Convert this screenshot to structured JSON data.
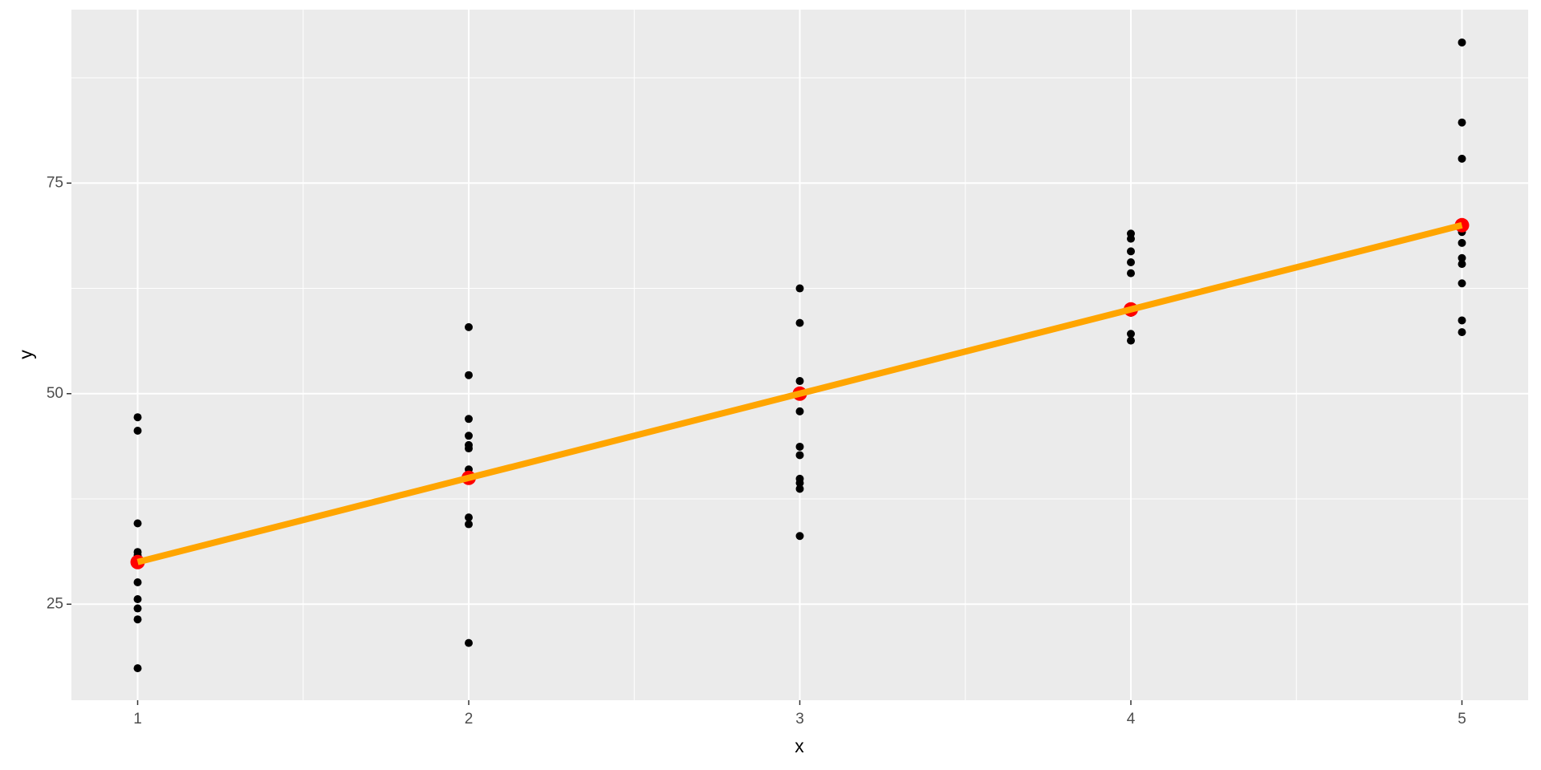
{
  "chart_data": {
    "type": "scatter",
    "xlabel": "x",
    "ylabel": "y",
    "xlim": [
      0.8,
      5.2
    ],
    "ylim": [
      13.6,
      95.6
    ],
    "xticks": [
      1,
      2,
      3,
      4,
      5
    ],
    "yticks": [
      25,
      50,
      75
    ],
    "x_minor_ticks": [
      1.5,
      2.5,
      3.5,
      4.5
    ],
    "y_minor_ticks": [
      37.5,
      62.5,
      87.5
    ],
    "grid": true,
    "series": [
      {
        "color": "#000000",
        "x": [
          1,
          1,
          1,
          1,
          1,
          1,
          1,
          1,
          1,
          1,
          2,
          2,
          2,
          2,
          2,
          2,
          2,
          2,
          2,
          2,
          3,
          3,
          3,
          3,
          3,
          3,
          3,
          3,
          3,
          3,
          3,
          4,
          4,
          4,
          4,
          4,
          4,
          4,
          4,
          4,
          5,
          5,
          5,
          5,
          5,
          5,
          5,
          5,
          5,
          5,
          5
        ],
        "values": [
          47.2,
          45.6,
          34.6,
          31.2,
          30.8,
          27.6,
          25.6,
          24.5,
          23.2,
          17.4,
          57.9,
          52.2,
          47.0,
          45.0,
          43.9,
          43.5,
          41.0,
          35.3,
          34.5,
          20.4,
          62.5,
          58.4,
          51.5,
          50.0,
          47.9,
          43.7,
          42.7,
          39.9,
          39.4,
          38.7,
          33.1,
          69.0,
          68.4,
          66.9,
          65.6,
          64.3,
          60.1,
          59.6,
          57.1,
          56.3,
          91.7,
          82.2,
          77.9,
          69.8,
          69.2,
          67.9,
          66.1,
          65.4,
          63.1,
          58.7,
          57.3
        ]
      },
      {
        "color": "#ff0000",
        "x": [
          1,
          2,
          3,
          4,
          5
        ],
        "values": [
          30,
          40,
          50,
          60,
          70
        ]
      },
      {
        "type": "line",
        "color": "#ffa500",
        "x": [
          1,
          2,
          3,
          4,
          5
        ],
        "values": [
          30,
          40,
          50,
          60,
          70
        ]
      }
    ]
  }
}
